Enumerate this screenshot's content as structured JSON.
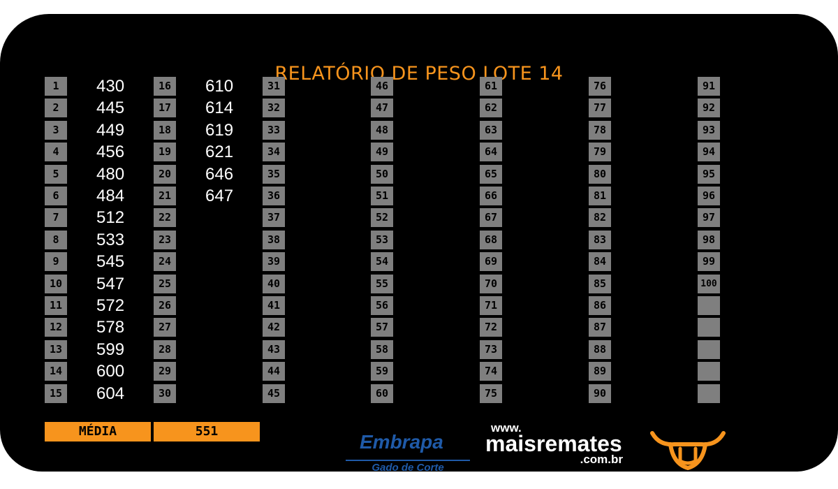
{
  "title": "RELATÓRIO DE PESO LOTE 14",
  "lots": [
    {
      "n": "1",
      "w": "430"
    },
    {
      "n": "2",
      "w": "445"
    },
    {
      "n": "3",
      "w": "449"
    },
    {
      "n": "4",
      "w": "456"
    },
    {
      "n": "5",
      "w": "480"
    },
    {
      "n": "6",
      "w": "484"
    },
    {
      "n": "7",
      "w": "512"
    },
    {
      "n": "8",
      "w": "533"
    },
    {
      "n": "9",
      "w": "545"
    },
    {
      "n": "10",
      "w": "547"
    },
    {
      "n": "11",
      "w": "572"
    },
    {
      "n": "12",
      "w": "578"
    },
    {
      "n": "13",
      "w": "599"
    },
    {
      "n": "14",
      "w": "600"
    },
    {
      "n": "15",
      "w": "604"
    },
    {
      "n": "16",
      "w": "610"
    },
    {
      "n": "17",
      "w": "614"
    },
    {
      "n": "18",
      "w": "619"
    },
    {
      "n": "19",
      "w": "621"
    },
    {
      "n": "20",
      "w": "646"
    },
    {
      "n": "21",
      "w": "647"
    },
    {
      "n": "22",
      "w": ""
    },
    {
      "n": "23",
      "w": ""
    },
    {
      "n": "24",
      "w": ""
    },
    {
      "n": "25",
      "w": ""
    },
    {
      "n": "26",
      "w": ""
    },
    {
      "n": "27",
      "w": ""
    },
    {
      "n": "28",
      "w": ""
    },
    {
      "n": "29",
      "w": ""
    },
    {
      "n": "30",
      "w": ""
    },
    {
      "n": "31",
      "w": ""
    },
    {
      "n": "32",
      "w": ""
    },
    {
      "n": "33",
      "w": ""
    },
    {
      "n": "34",
      "w": ""
    },
    {
      "n": "35",
      "w": ""
    },
    {
      "n": "36",
      "w": ""
    },
    {
      "n": "37",
      "w": ""
    },
    {
      "n": "38",
      "w": ""
    },
    {
      "n": "39",
      "w": ""
    },
    {
      "n": "40",
      "w": ""
    },
    {
      "n": "41",
      "w": ""
    },
    {
      "n": "42",
      "w": ""
    },
    {
      "n": "43",
      "w": ""
    },
    {
      "n": "44",
      "w": ""
    },
    {
      "n": "45",
      "w": ""
    },
    {
      "n": "46",
      "w": ""
    },
    {
      "n": "47",
      "w": ""
    },
    {
      "n": "48",
      "w": ""
    },
    {
      "n": "49",
      "w": ""
    },
    {
      "n": "50",
      "w": ""
    },
    {
      "n": "51",
      "w": ""
    },
    {
      "n": "52",
      "w": ""
    },
    {
      "n": "53",
      "w": ""
    },
    {
      "n": "54",
      "w": ""
    },
    {
      "n": "55",
      "w": ""
    },
    {
      "n": "56",
      "w": ""
    },
    {
      "n": "57",
      "w": ""
    },
    {
      "n": "58",
      "w": ""
    },
    {
      "n": "59",
      "w": ""
    },
    {
      "n": "60",
      "w": ""
    },
    {
      "n": "61",
      "w": ""
    },
    {
      "n": "62",
      "w": ""
    },
    {
      "n": "63",
      "w": ""
    },
    {
      "n": "64",
      "w": ""
    },
    {
      "n": "65",
      "w": ""
    },
    {
      "n": "66",
      "w": ""
    },
    {
      "n": "67",
      "w": ""
    },
    {
      "n": "68",
      "w": ""
    },
    {
      "n": "69",
      "w": ""
    },
    {
      "n": "70",
      "w": ""
    },
    {
      "n": "71",
      "w": ""
    },
    {
      "n": "72",
      "w": ""
    },
    {
      "n": "73",
      "w": ""
    },
    {
      "n": "74",
      "w": ""
    },
    {
      "n": "75",
      "w": ""
    },
    {
      "n": "76",
      "w": ""
    },
    {
      "n": "77",
      "w": ""
    },
    {
      "n": "78",
      "w": ""
    },
    {
      "n": "79",
      "w": ""
    },
    {
      "n": "80",
      "w": ""
    },
    {
      "n": "81",
      "w": ""
    },
    {
      "n": "82",
      "w": ""
    },
    {
      "n": "83",
      "w": ""
    },
    {
      "n": "84",
      "w": ""
    },
    {
      "n": "85",
      "w": ""
    },
    {
      "n": "86",
      "w": ""
    },
    {
      "n": "87",
      "w": ""
    },
    {
      "n": "88",
      "w": ""
    },
    {
      "n": "89",
      "w": ""
    },
    {
      "n": "90",
      "w": ""
    },
    {
      "n": "91",
      "w": ""
    },
    {
      "n": "92",
      "w": ""
    },
    {
      "n": "93",
      "w": ""
    },
    {
      "n": "94",
      "w": ""
    },
    {
      "n": "95",
      "w": ""
    },
    {
      "n": "96",
      "w": ""
    },
    {
      "n": "97",
      "w": ""
    },
    {
      "n": "98",
      "w": ""
    },
    {
      "n": "99",
      "w": ""
    },
    {
      "n": "100",
      "w": ""
    },
    {
      "n": "",
      "w": ""
    },
    {
      "n": "",
      "w": ""
    },
    {
      "n": "",
      "w": ""
    },
    {
      "n": "",
      "w": ""
    },
    {
      "n": "",
      "w": ""
    }
  ],
  "media_label": "MÉDIA",
  "media_value": "551",
  "logos": {
    "embrapa_word": "Embrapa",
    "embrapa_sub": "Gado de Corte",
    "mais_www": "www.",
    "mais_name": "maisremates",
    "mais_com": ".com.br",
    "bull": "bull-head-icon"
  },
  "colors": {
    "accent": "#f7941d",
    "cell": "#7f7f7f",
    "background": "#000000",
    "embrapa": "#1f5aa8"
  }
}
